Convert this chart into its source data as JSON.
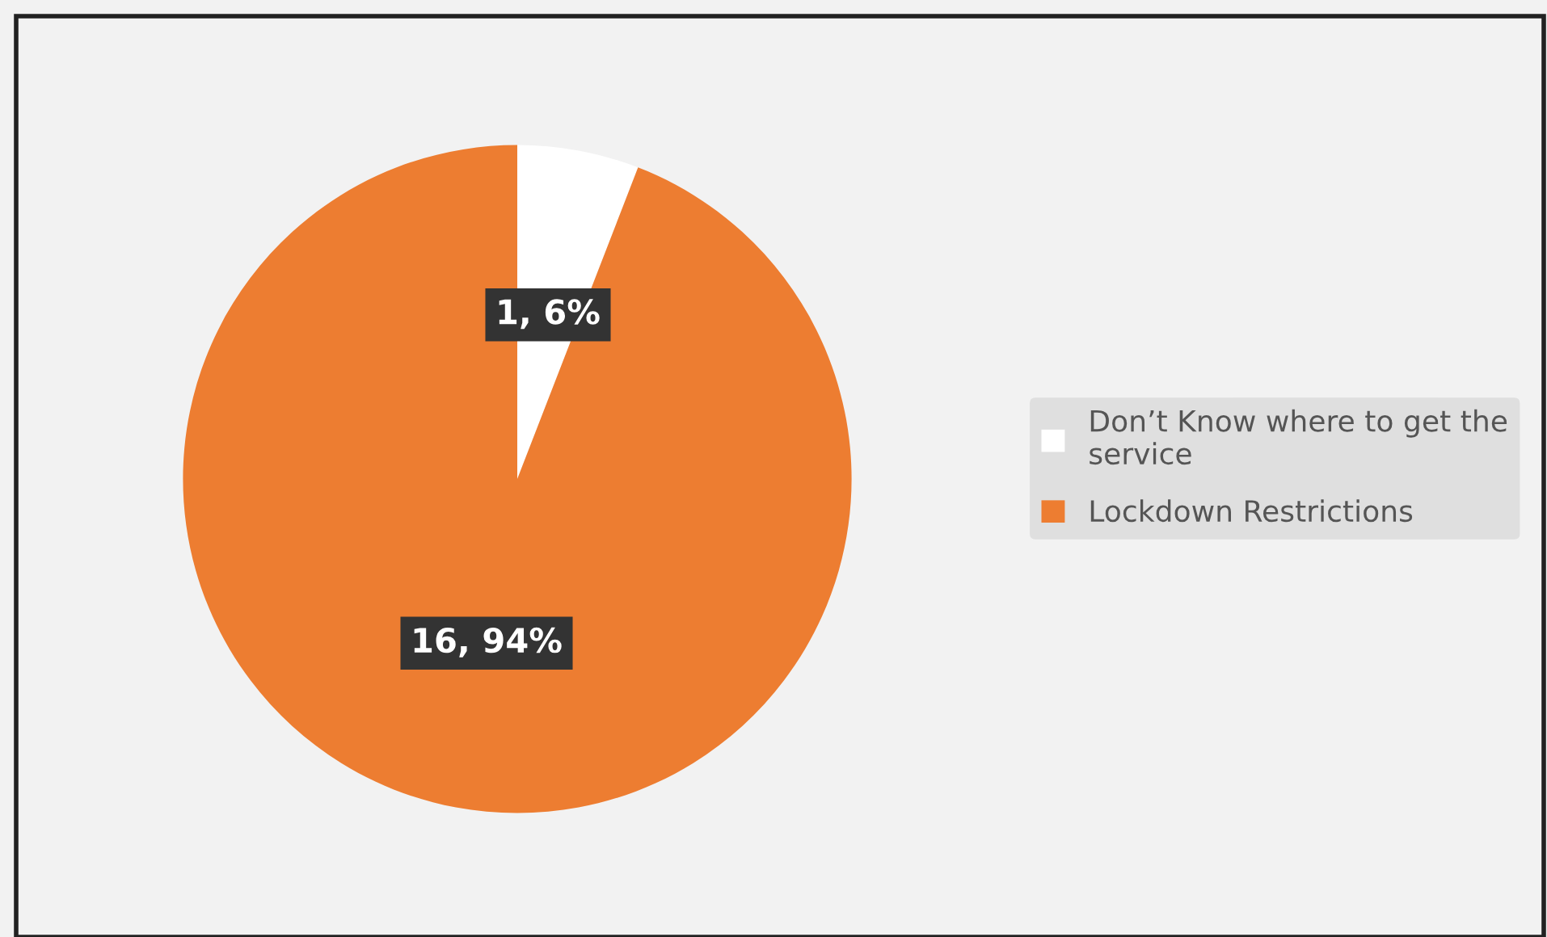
{
  "chart_data": {
    "type": "pie",
    "categories": [
      "Don’t Know where to get the service",
      "Lockdown Restrictions"
    ],
    "values": [
      1,
      16
    ],
    "colors": [
      "#ffffff",
      "#ed7d31"
    ],
    "value_labels": [
      "1, 6%",
      "16, 94%"
    ],
    "legend": "right"
  }
}
